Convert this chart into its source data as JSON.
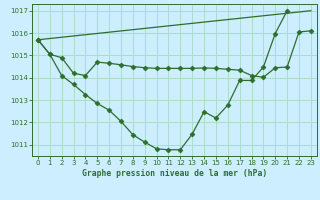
{
  "title": "Graphe pression niveau de la mer (hPa)",
  "background_color": "#cceeff",
  "grid_color": "#aaddcc",
  "line_color": "#2d6e2d",
  "xlim": [
    -0.5,
    23.5
  ],
  "ylim": [
    1010.5,
    1017.3
  ],
  "yticks": [
    1011,
    1012,
    1013,
    1014,
    1015,
    1016,
    1017
  ],
  "xticks": [
    0,
    1,
    2,
    3,
    4,
    5,
    6,
    7,
    8,
    9,
    10,
    11,
    12,
    13,
    14,
    15,
    16,
    17,
    18,
    19,
    20,
    21,
    22,
    23
  ],
  "line1_x": [
    0,
    23
  ],
  "line1_y": [
    1015.7,
    1017.0
  ],
  "line2_x": [
    0,
    1,
    2,
    3,
    4,
    5,
    6,
    7,
    8,
    9,
    10,
    11,
    12,
    13,
    14,
    15,
    16,
    17,
    18,
    19,
    20,
    21,
    22,
    23
  ],
  "line2_y": [
    1015.7,
    1015.05,
    1014.9,
    1014.2,
    1014.1,
    1014.7,
    1014.65,
    1014.58,
    1014.5,
    1014.45,
    1014.42,
    1014.42,
    1014.42,
    1014.42,
    1014.44,
    1014.42,
    1014.38,
    1014.34,
    1014.1,
    1014.02,
    1014.45,
    1014.48,
    1016.05,
    1016.1
  ],
  "line3_x": [
    0,
    1,
    2,
    3,
    4,
    5,
    6,
    7,
    8,
    9,
    10,
    11,
    12,
    13,
    14,
    15,
    16,
    17,
    18,
    19,
    20,
    21
  ],
  "line3_y": [
    1015.7,
    1015.05,
    1014.1,
    1013.7,
    1013.25,
    1012.85,
    1012.55,
    1012.05,
    1011.45,
    1011.12,
    1010.82,
    1010.78,
    1010.78,
    1011.48,
    1012.48,
    1012.2,
    1012.78,
    1013.88,
    1013.88,
    1014.48,
    1015.98,
    1017.0
  ],
  "markersize": 2.5,
  "linewidth": 0.9,
  "tick_fontsize": 5.0,
  "xlabel_fontsize": 5.8
}
